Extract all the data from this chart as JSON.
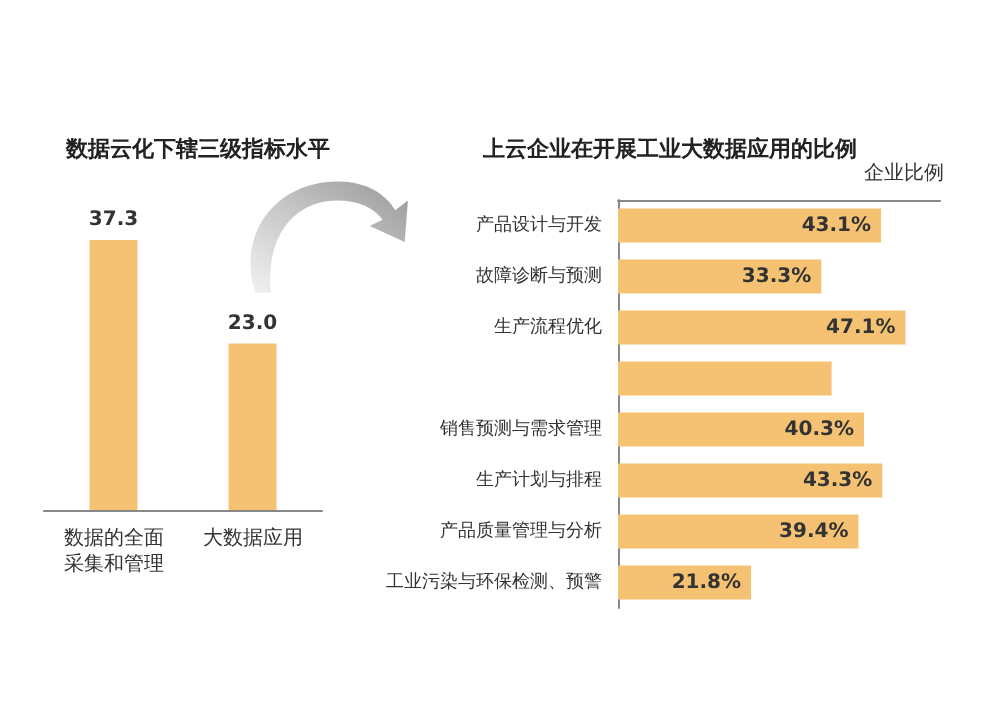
{
  "chart_data": [
    {
      "type": "bar",
      "title": "数据云化下辖三级指标水平",
      "categories": [
        "数据的全面采集和管理",
        "大数据应用"
      ],
      "values": [
        37.3,
        23.0
      ],
      "value_labels": [
        "37.3",
        "23.0"
      ],
      "color": "#f4c272"
    },
    {
      "type": "bar",
      "orientation": "horizontal",
      "title": "上云企业在开展工业大数据应用的比例",
      "xlabel": "企业比例",
      "categories": [
        "产品设计与开发",
        "故障诊断与预测",
        "生产流程优化",
        null,
        "销售预测与需求管理",
        "生产计划与排程",
        "产品质量管理与分析",
        "工业污染与环保检测、预警"
      ],
      "values": [
        43.1,
        33.3,
        47.1,
        35,
        40.3,
        43.3,
        39.4,
        21.8
      ],
      "value_labels": [
        "43.1%",
        "33.3%",
        "47.1%",
        null,
        "40.3%",
        "43.3%",
        "39.4%",
        "21.8%"
      ],
      "color": "#f4c272"
    }
  ]
}
